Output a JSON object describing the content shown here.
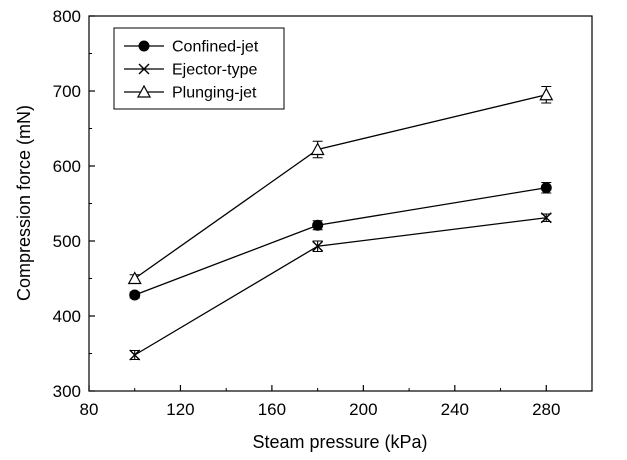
{
  "chart_data": {
    "type": "line",
    "xlabel": "Steam pressure (kPa)",
    "ylabel": "Compression force (mN)",
    "xlim": [
      80,
      300
    ],
    "ylim": [
      300,
      800
    ],
    "xticks": [
      80,
      120,
      160,
      200,
      240,
      280
    ],
    "yticks": [
      300,
      400,
      500,
      600,
      700,
      800
    ],
    "legend_position": "top-left",
    "grid": false,
    "x": [
      100,
      180,
      280
    ],
    "series": [
      {
        "name": "Confined-jet",
        "marker": "filled-circle",
        "values": [
          428,
          521,
          571
        ],
        "errors": [
          4,
          6,
          7
        ]
      },
      {
        "name": "Ejector-type",
        "marker": "x-cross",
        "values": [
          348,
          493,
          531
        ],
        "errors": [
          6,
          7,
          5
        ]
      },
      {
        "name": "Plunging-jet",
        "marker": "open-triangle",
        "values": [
          450,
          622,
          695
        ],
        "errors": [
          5,
          11,
          11
        ]
      }
    ]
  }
}
